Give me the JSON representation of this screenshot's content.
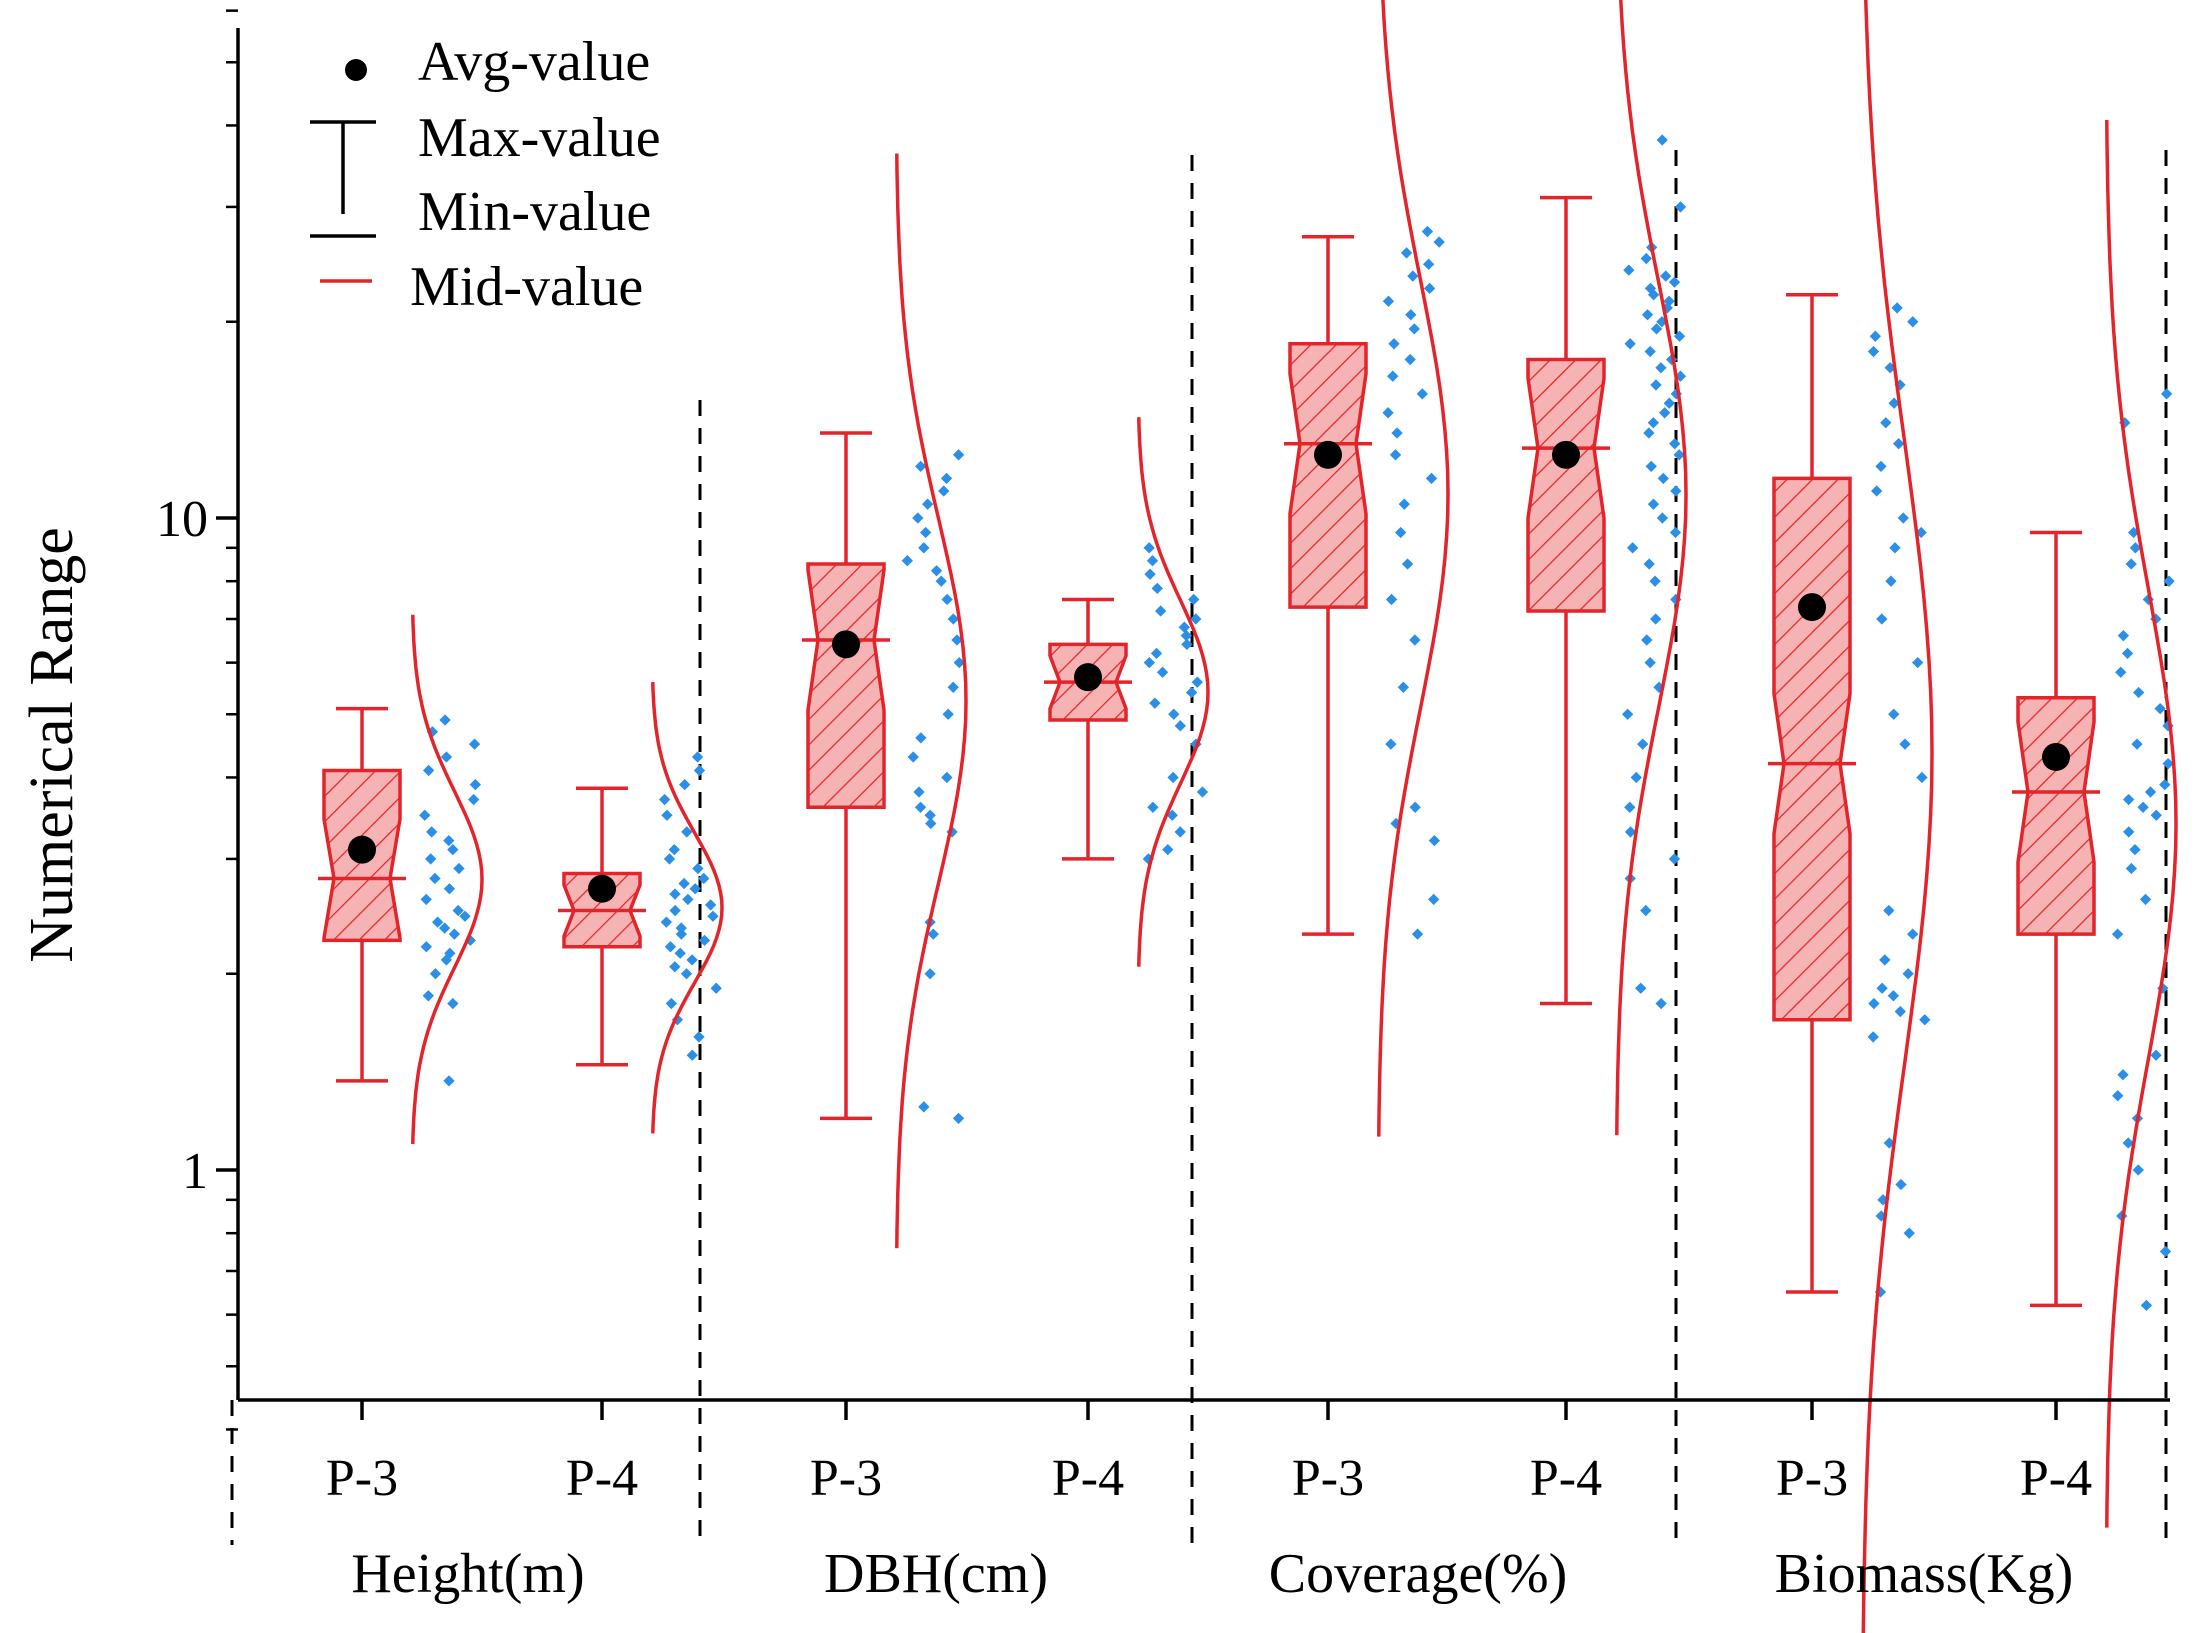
{
  "chart_data": {
    "type": "box",
    "ylabel": "Numerical Range",
    "yscale": "log",
    "ylim": [
      0.35,
      70
    ],
    "yticks": [
      {
        "value": 1,
        "label": "1"
      },
      {
        "value": 10,
        "label": "10"
      }
    ],
    "legend": {
      "position": "top-left",
      "items": [
        {
          "kind": "dot",
          "label": "Avg-value"
        },
        {
          "kind": "cap-top",
          "label": "Max-value"
        },
        {
          "kind": "cap-bottom",
          "label": "Min-value"
        },
        {
          "kind": "red-line",
          "label": "Mid-value"
        }
      ]
    },
    "colors": {
      "box": "#e3242b",
      "fill": "#f6b3b3",
      "points": "#2b8fe8",
      "mean": "#000000",
      "axis": "#000000"
    },
    "groups": [
      {
        "label": "Height(m)",
        "series": [
          {
            "name": "P-3",
            "min": 1.37,
            "q1": 2.25,
            "median": 2.8,
            "q3": 4.1,
            "max": 5.1,
            "mean": 3.1,
            "points": [
              1.37,
              1.8,
              1.85,
              2.0,
              2.1,
              2.15,
              2.2,
              2.25,
              2.3,
              2.35,
              2.4,
              2.45,
              2.5,
              2.6,
              2.7,
              2.8,
              2.9,
              3.0,
              3.1,
              3.2,
              3.3,
              3.5,
              3.7,
              3.9,
              4.1,
              4.3,
              4.5,
              4.7,
              4.9
            ]
          },
          {
            "name": "P-4",
            "min": 1.45,
            "q1": 2.2,
            "median": 2.5,
            "q3": 2.85,
            "max": 3.85,
            "mean": 2.7,
            "points": [
              1.5,
              1.6,
              1.7,
              1.8,
              1.9,
              2.0,
              2.05,
              2.1,
              2.15,
              2.2,
              2.25,
              2.3,
              2.35,
              2.4,
              2.45,
              2.5,
              2.55,
              2.6,
              2.65,
              2.7,
              2.75,
              2.8,
              2.9,
              3.0,
              3.1,
              3.3,
              3.5,
              3.7,
              3.9,
              4.1,
              4.3
            ]
          }
        ]
      },
      {
        "label": "DBH(cm)",
        "series": [
          {
            "name": "P-3",
            "min": 1.2,
            "q1": 3.6,
            "median": 6.5,
            "q3": 8.5,
            "max": 13.5,
            "mean": 6.4,
            "points": [
              1.2,
              1.25,
              2.0,
              2.3,
              2.4,
              3.3,
              3.4,
              3.5,
              3.6,
              3.8,
              4.0,
              4.3,
              4.6,
              5.0,
              5.5,
              6.0,
              6.5,
              7.0,
              7.5,
              8.0,
              8.3,
              8.6,
              9.0,
              9.5,
              10.0,
              10.5,
              11.0,
              11.5,
              12.0,
              12.5
            ]
          },
          {
            "name": "P-4",
            "min": 3.0,
            "q1": 4.9,
            "median": 5.6,
            "q3": 6.4,
            "max": 7.5,
            "mean": 5.7,
            "points": [
              3.0,
              3.1,
              3.3,
              3.5,
              3.6,
              3.8,
              4.0,
              4.5,
              4.8,
              5.0,
              5.2,
              5.4,
              5.6,
              5.8,
              6.0,
              6.2,
              6.4,
              6.6,
              6.8,
              7.0,
              7.2,
              7.5,
              7.8,
              8.2,
              8.6,
              9.0
            ]
          }
        ]
      },
      {
        "label": "Coverage(%)",
        "series": [
          {
            "name": "P-3",
            "min": 2.3,
            "q1": 7.3,
            "median": 13.0,
            "q3": 18.5,
            "max": 27.0,
            "mean": 12.5,
            "points": [
              2.3,
              2.6,
              3.2,
              3.4,
              3.6,
              4.5,
              5.5,
              6.5,
              7.5,
              8.5,
              9.5,
              10.5,
              11.5,
              12.5,
              13.5,
              14.5,
              15.5,
              16.5,
              17.5,
              18.5,
              19.5,
              20.5,
              21.5,
              22.5,
              23.5,
              24.5,
              25.5,
              26.5,
              27.5
            ]
          },
          {
            "name": "P-4",
            "min": 1.8,
            "q1": 7.2,
            "median": 12.8,
            "q3": 17.5,
            "max": 31.0,
            "mean": 12.5,
            "points": [
              1.8,
              1.9,
              2.5,
              2.8,
              3.0,
              3.3,
              3.6,
              4.0,
              4.5,
              5.0,
              5.5,
              6.0,
              6.5,
              7.0,
              7.5,
              8.0,
              8.5,
              9.0,
              9.5,
              10.0,
              10.5,
              11.0,
              11.5,
              12.0,
              12.5,
              13.0,
              13.5,
              14.0,
              14.5,
              15.0,
              15.5,
              16.0,
              16.5,
              17.0,
              17.5,
              18.0,
              18.5,
              19.0,
              19.5,
              20.0,
              20.5,
              21.0,
              21.5,
              22.0,
              22.5,
              23.0,
              23.5,
              24.0,
              25.0,
              26.0,
              30.0,
              38.0
            ]
          }
        ]
      },
      {
        "label": "Biomass(Kg)",
        "series": [
          {
            "name": "P-3",
            "min": 0.65,
            "q1": 1.7,
            "median": 4.2,
            "q3": 11.5,
            "max": 22.0,
            "mean": 7.3,
            "points": [
              0.65,
              0.8,
              0.85,
              0.9,
              0.95,
              1.1,
              1.6,
              1.7,
              1.75,
              1.8,
              1.85,
              1.9,
              2.0,
              2.1,
              2.3,
              2.5,
              4.0,
              4.5,
              5.0,
              6.0,
              7.0,
              8.0,
              9.0,
              9.5,
              10.0,
              11.0,
              12.0,
              13.0,
              14.0,
              15.0,
              16.0,
              17.0,
              18.0,
              19.0,
              20.0,
              21.0
            ]
          },
          {
            "name": "P-4",
            "min": 0.62,
            "q1": 2.3,
            "median": 3.8,
            "q3": 5.3,
            "max": 9.5,
            "mean": 4.3,
            "points": [
              0.62,
              0.75,
              0.85,
              1.0,
              1.1,
              1.2,
              1.3,
              1.4,
              1.5,
              1.9,
              2.3,
              2.6,
              2.9,
              3.1,
              3.3,
              3.5,
              3.6,
              3.7,
              3.8,
              3.9,
              4.2,
              4.5,
              4.8,
              5.1,
              5.4,
              5.8,
              6.2,
              6.6,
              7.0,
              7.5,
              8.0,
              8.5,
              9.0,
              9.5,
              14.0,
              15.5
            ]
          }
        ]
      }
    ]
  }
}
